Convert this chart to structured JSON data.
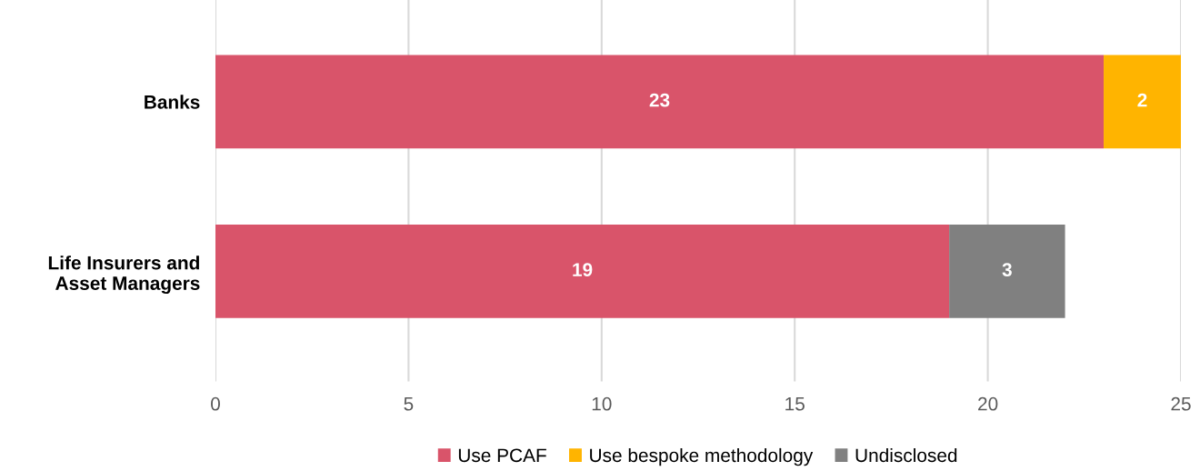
{
  "chart_data": {
    "type": "bar",
    "orientation": "horizontal",
    "stacked": true,
    "categories": [
      "Banks",
      "Life Insurers and\nAsset Managers"
    ],
    "series": [
      {
        "name": "Use PCAF",
        "color": "#d9546a",
        "values": [
          23,
          19
        ]
      },
      {
        "name": "Use bespoke methodology",
        "color": "#ffb400",
        "values": [
          2,
          null
        ]
      },
      {
        "name": "Undisclosed",
        "color": "#808080",
        "values": [
          null,
          3
        ]
      }
    ],
    "xlim": [
      0,
      25
    ],
    "xticks": [
      0,
      5,
      10,
      15,
      20,
      25
    ],
    "grid": "x",
    "legend": "bottom",
    "data_labels": true
  }
}
